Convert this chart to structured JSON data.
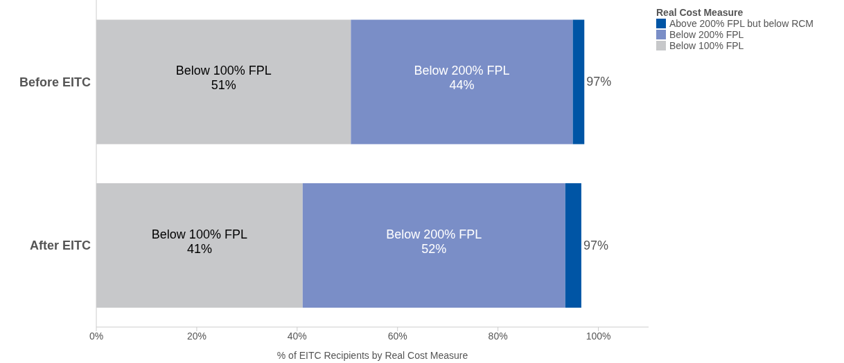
{
  "chart_data": {
    "type": "bar",
    "orientation": "horizontal",
    "stacked": true,
    "xlabel": "% of EITC Recipients by Real Cost Measure",
    "legend_title": "Real Cost Measure",
    "legend": "top right",
    "categories": [
      "Before EITC",
      "After EITC"
    ],
    "series": [
      {
        "name": "Below 100% FPL",
        "color": "#c7c8ca",
        "values": [
          50.7,
          41.1
        ],
        "value_labels": [
          "51%",
          "41%"
        ]
      },
      {
        "name": "Below 200% FPL",
        "color": "#7a8ec7",
        "values": [
          44.2,
          52.3
        ],
        "value_labels": [
          "44%",
          "52%"
        ]
      },
      {
        "name": "Above 200% FPL but below RCM",
        "color": "#0055a5",
        "values": [
          2.3,
          3.2
        ],
        "value_labels": [
          null,
          null
        ]
      }
    ],
    "totals": [
      "97%",
      "97%"
    ],
    "xlim": [
      0,
      110
    ],
    "xticks": [
      {
        "value": 0,
        "label": "0%"
      },
      {
        "value": 20,
        "label": "20%"
      },
      {
        "value": 40,
        "label": "40%"
      },
      {
        "value": 60,
        "label": "60%"
      },
      {
        "value": 80,
        "label": "80%"
      },
      {
        "value": 100,
        "label": "100%"
      }
    ],
    "grid": false
  }
}
